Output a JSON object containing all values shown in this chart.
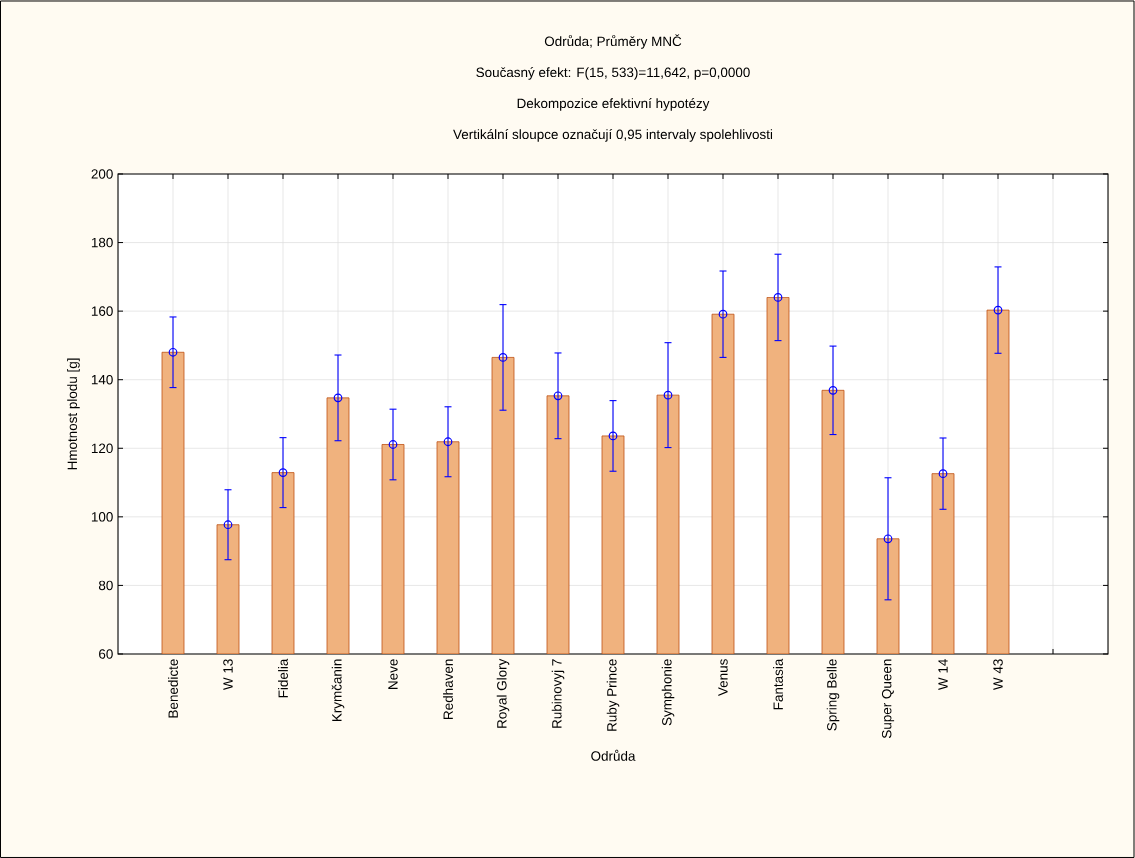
{
  "chart_data": {
    "type": "bar",
    "title": "Odrůda; Průměry MNČ",
    "subtitle": "Současný efekt: F(15, 533)=11,642, p=0,0000",
    "annotations": [
      "Dekompozice efektivní hypotézy",
      "Vertikální sloupce označují 0,95 intervaly spolehlivosti"
    ],
    "xlabel": "Odrůda",
    "ylabel": "Hmotnost plodu [g]",
    "categories": [
      "Benedicte",
      "W 13",
      "Fidelia",
      "Krymčanin",
      "Neve",
      "Redhaven",
      "Royal Glory",
      "Rubinovyj 7",
      "Ruby Prince",
      "Symphonie",
      "Venus",
      "Fantasia",
      "Spring Belle",
      "Super Queen",
      "W 14",
      "W 43"
    ],
    "series": [
      {
        "color": "#f0b27e",
        "values": [
          148.0,
          97.7,
          112.9,
          134.7,
          121.1,
          121.9,
          146.5,
          135.3,
          123.6,
          135.5,
          159.1,
          164.0,
          136.9,
          93.6,
          112.6,
          160.3
        ]
      },
      {
        "type": "scatter",
        "color": "#0000ff",
        "x": [
          "Benedicte",
          "W 13",
          "Fidelia",
          "Krymčanin",
          "Neve",
          "Redhaven",
          "Royal Glory",
          "Rubinovyj 7",
          "Ruby Prince",
          "Symphonie",
          "Venus",
          "Fantasia",
          "Spring Belle",
          "Super Queen",
          "W 14",
          "W 43"
        ],
        "values": [
          148.0,
          97.7,
          112.9,
          134.7,
          121.1,
          121.9,
          146.5,
          135.3,
          123.6,
          135.5,
          159.1,
          164.0,
          136.9,
          93.6,
          112.6,
          160.3
        ],
        "errors": [
          10.3,
          10.2,
          10.2,
          12.5,
          10.3,
          10.2,
          15.4,
          12.5,
          10.3,
          15.3,
          12.6,
          12.6,
          12.9,
          17.8,
          10.4,
          12.6
        ]
      }
    ],
    "marker": "circle",
    "ylim": [
      60,
      200
    ],
    "yticks": [
      60,
      80,
      100,
      120,
      140,
      160,
      180,
      200
    ],
    "grid": true
  }
}
